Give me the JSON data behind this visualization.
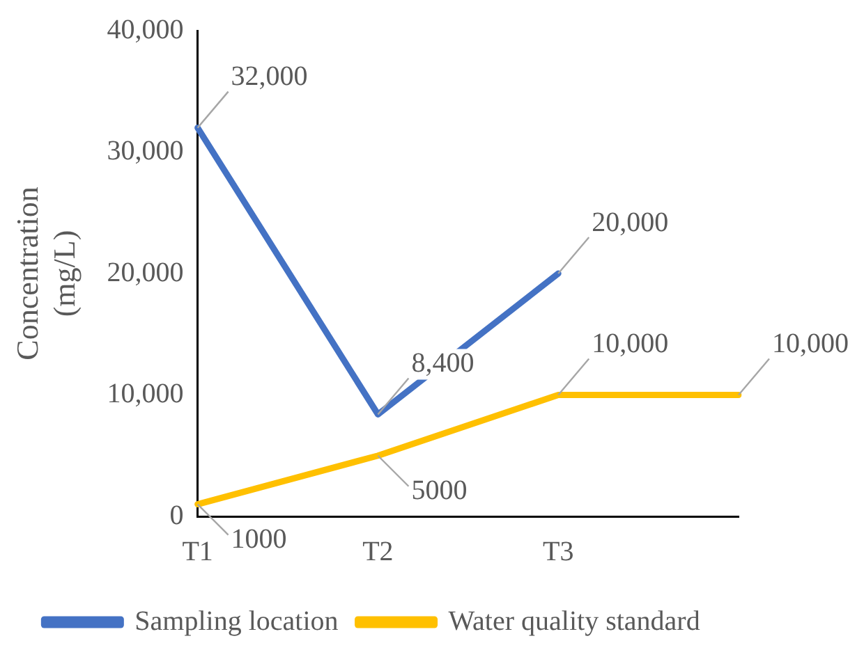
{
  "chart_data": {
    "type": "line",
    "ylabel": "Concentration (mg/L)",
    "categories": [
      "T1",
      "T2",
      "T3",
      null
    ],
    "series": [
      {
        "name": "Sampling location",
        "color": "#4472c4",
        "values": [
          32000,
          8400,
          20000,
          null
        ],
        "value_labels": [
          "32,000",
          "8,400",
          "20,000",
          null
        ]
      },
      {
        "name": "Water quality standard",
        "color": "#ffc000",
        "values": [
          1000,
          5000,
          10000,
          10000
        ],
        "value_labels": [
          "1000",
          "5000",
          "10,000",
          "10,000"
        ]
      }
    ],
    "ylim": [
      0,
      40000
    ],
    "yticks": [
      0,
      {
        "value": 10000,
        "label": "10,000"
      },
      {
        "value": 20000,
        "label": "20,000"
      },
      {
        "value": 30000,
        "label": "30,000"
      },
      {
        "value": 40000,
        "label": "40,000"
      }
    ],
    "grid": false,
    "legend": "bottom",
    "marker": "none",
    "line_style": "solid"
  }
}
